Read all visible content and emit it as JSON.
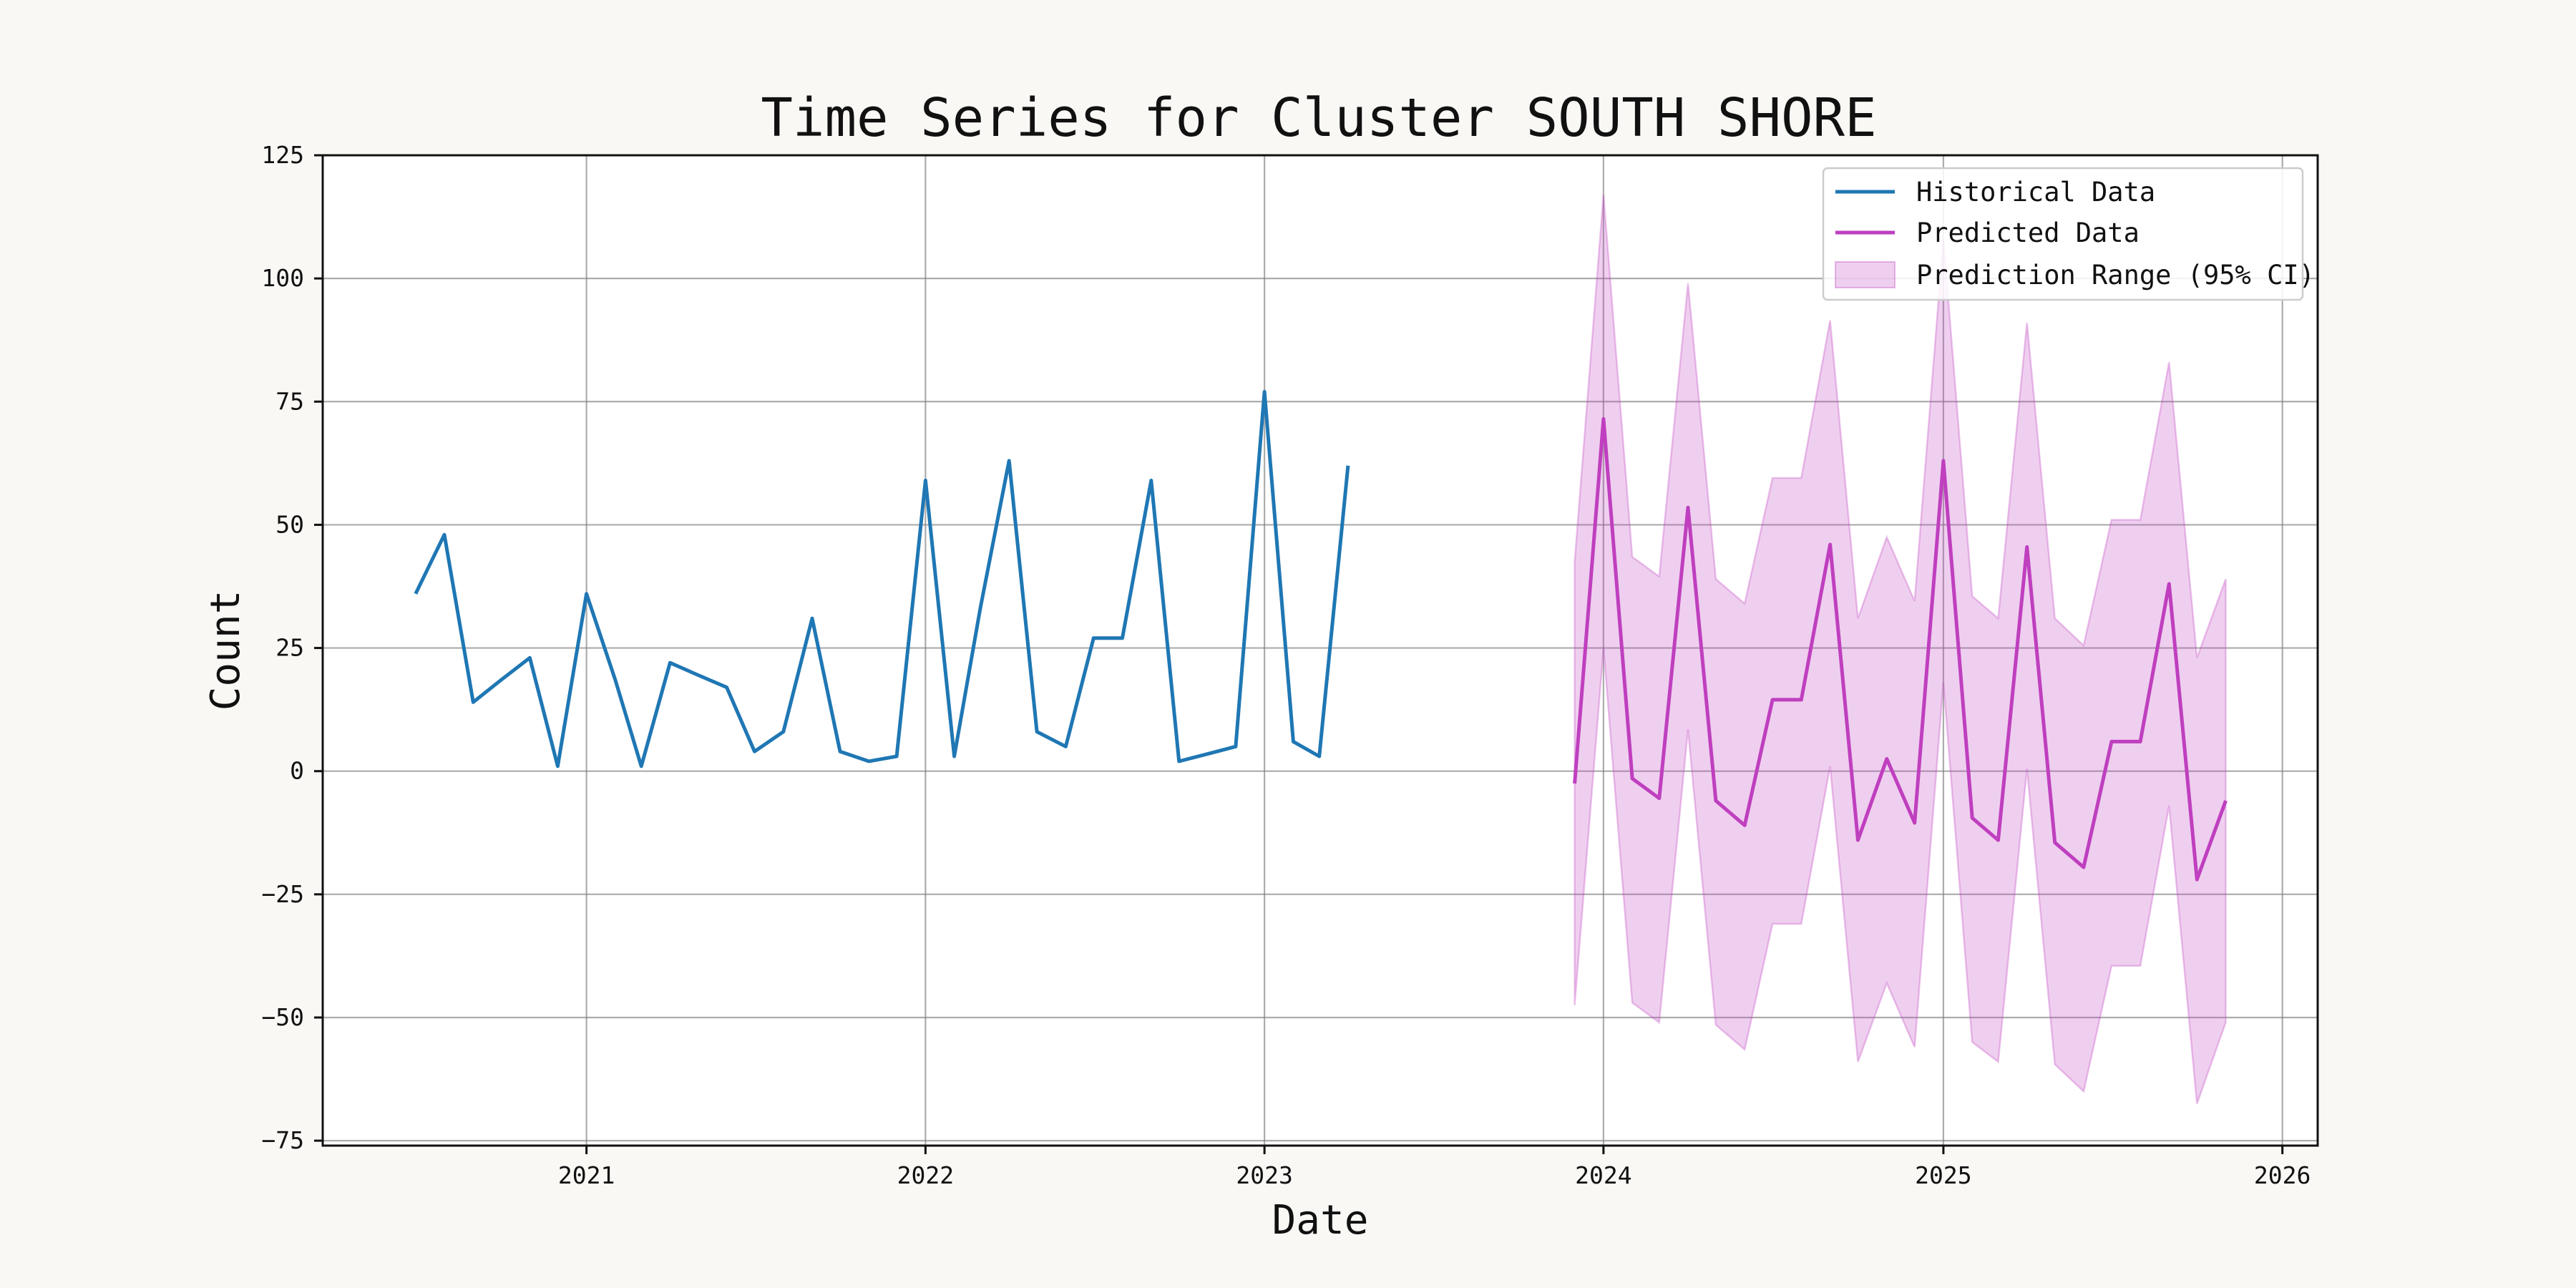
{
  "chart_data": {
    "type": "line",
    "title": "Time Series for Cluster SOUTH SHORE",
    "xlabel": "Date",
    "ylabel": "Count",
    "xlim": [
      "2020-03-23",
      "2026-02-08"
    ],
    "ylim": [
      -76,
      125
    ],
    "grid": true,
    "legend_position": "top-right",
    "x_ticks": [
      "2021",
      "2022",
      "2023",
      "2024",
      "2025",
      "2026"
    ],
    "y_ticks": [
      125,
      100,
      75,
      50,
      25,
      0,
      -25,
      -50,
      -75
    ],
    "series": [
      {
        "name": "Historical Data",
        "color": "#1f77b4",
        "x": [
          "2020-07-01",
          "2020-08-01",
          "2020-09-01",
          "2020-10-01",
          "2020-11-01",
          "2020-12-01",
          "2021-01-01",
          "2021-02-01",
          "2021-03-01",
          "2021-04-01",
          "2021-05-01",
          "2021-06-01",
          "2021-07-01",
          "2021-08-01",
          "2021-09-01",
          "2021-10-01",
          "2021-11-01",
          "2021-12-01",
          "2022-01-01",
          "2022-02-01",
          "2022-03-01",
          "2022-04-01",
          "2022-05-01",
          "2022-06-01",
          "2022-07-01",
          "2022-08-01",
          "2022-09-01",
          "2022-10-01",
          "2022-11-01",
          "2022-12-01",
          "2023-01-01",
          "2023-02-01",
          "2023-03-01",
          "2023-04-01"
        ],
        "values": [
          36,
          48,
          14,
          18.5,
          23,
          1,
          36,
          18.5,
          1,
          22,
          19.5,
          17,
          4,
          8,
          31,
          4,
          2,
          3,
          59,
          3,
          33,
          63,
          8,
          5,
          27,
          27,
          59,
          2,
          3.5,
          5,
          77,
          6,
          3,
          62
        ]
      },
      {
        "name": "Predicted Data",
        "color": "#bf3fbf",
        "x": [
          "2023-12-01",
          "2024-01-01",
          "2024-02-01",
          "2024-03-01",
          "2024-04-01",
          "2024-05-01",
          "2024-06-01",
          "2024-07-01",
          "2024-08-01",
          "2024-09-01",
          "2024-10-01",
          "2024-11-01",
          "2024-12-01",
          "2025-01-01",
          "2025-02-01",
          "2025-03-01",
          "2025-04-01",
          "2025-05-01",
          "2025-06-01",
          "2025-07-01",
          "2025-08-01",
          "2025-09-01",
          "2025-10-01",
          "2025-11-01"
        ],
        "values": [
          -2.5,
          71.5,
          -1.5,
          -5.5,
          53.5,
          -6,
          -11,
          14.5,
          14.5,
          46,
          -14,
          2.5,
          -10.5,
          63,
          -9.5,
          -14,
          45.5,
          -14.5,
          -19.5,
          6,
          6,
          38,
          -22,
          -6
        ],
        "lower": [
          -47.5,
          25,
          -47,
          -51,
          8.5,
          -51.5,
          -56.5,
          -31,
          -31,
          1,
          -59,
          -43,
          -56,
          18,
          -55,
          -59,
          0.5,
          -59.5,
          -65,
          -39.5,
          -39.5,
          -7,
          -67.5,
          -51
        ],
        "upper": [
          42.5,
          117,
          43.5,
          39.5,
          99,
          39,
          34,
          59.5,
          59.5,
          91.5,
          31,
          47.5,
          34.5,
          108,
          35.5,
          31,
          91,
          31,
          25.5,
          51,
          51,
          83,
          23,
          39
        ]
      }
    ],
    "legend": [
      {
        "label": "Historical Data",
        "kind": "line",
        "color": "#1f77b4"
      },
      {
        "label": "Predicted Data",
        "kind": "line",
        "color": "#bf3fbf"
      },
      {
        "label": "Prediction Range (95% CI)",
        "kind": "patch",
        "color": "#bf3fbf"
      }
    ]
  }
}
